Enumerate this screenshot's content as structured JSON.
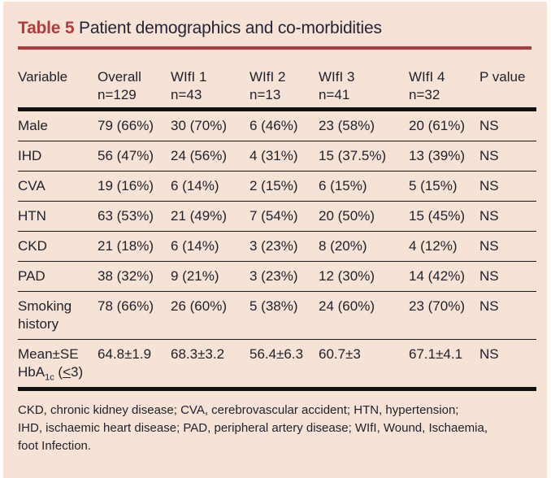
{
  "colors": {
    "panel_background": "#f6e3d6",
    "accent_red": "#b23b3e",
    "text_dark": "#20222e",
    "rule_black": "#121212"
  },
  "title": {
    "label": "Table 5",
    "text": "Patient demographics and co-morbidities"
  },
  "table": {
    "columns": [
      {
        "line1": "Variable",
        "line2": ""
      },
      {
        "line1": "Overall",
        "line2": "n=129"
      },
      {
        "line1": "WIfI 1",
        "line2": "n=43"
      },
      {
        "line1": "WIfI 2",
        "line2": "n=13"
      },
      {
        "line1": "WIfI 3",
        "line2": "n=41"
      },
      {
        "line1": "WIfI 4",
        "line2": "n=32"
      },
      {
        "line1": "P value",
        "line2": ""
      }
    ],
    "rows": [
      {
        "variable_lines": [
          [
            {
              "text": "Male"
            }
          ]
        ],
        "values": [
          "79 (66%)",
          "30 (70%)",
          "6 (46%)",
          "23 (58%)",
          "20 (61%)",
          "NS"
        ]
      },
      {
        "variable_lines": [
          [
            {
              "text": "IHD"
            }
          ]
        ],
        "values": [
          "56 (47%)",
          "24 (56%)",
          "4 (31%)",
          "15 (37.5%)",
          "13 (39%)",
          "NS"
        ]
      },
      {
        "variable_lines": [
          [
            {
              "text": "CVA"
            }
          ]
        ],
        "values": [
          "19 (16%)",
          "6 (14%)",
          "2 (15%)",
          "6 (15%)",
          "5 (15%)",
          "NS"
        ]
      },
      {
        "variable_lines": [
          [
            {
              "text": "HTN"
            }
          ]
        ],
        "values": [
          "63 (53%)",
          "21 (49%)",
          "7 (54%)",
          "20 (50%)",
          "15 (45%)",
          "NS"
        ]
      },
      {
        "variable_lines": [
          [
            {
              "text": "CKD"
            }
          ]
        ],
        "values": [
          "21 (18%)",
          "6 (14%)",
          "3 (23%)",
          "8 (20%)",
          "4 (12%)",
          "NS"
        ]
      },
      {
        "variable_lines": [
          [
            {
              "text": "PAD"
            }
          ]
        ],
        "values": [
          "38 (32%)",
          "9 (21%)",
          "3 (23%)",
          "12 (30%)",
          "14 (42%)",
          "NS"
        ]
      },
      {
        "variable_lines": [
          [
            {
              "text": "Smoking"
            }
          ],
          [
            {
              "text": "history"
            }
          ]
        ],
        "values": [
          "78 (66%)",
          "26 (60%)",
          "5 (38%)",
          "24 (60%)",
          "23 (70%)",
          "NS"
        ]
      },
      {
        "variable_lines": [
          [
            {
              "text": "Mean±SE"
            }
          ],
          [
            {
              "text": "HbA"
            },
            {
              "text": "1c",
              "style": "sub"
            },
            {
              "text": " ("
            },
            {
              "text": "<",
              "style": "underline"
            },
            {
              "text": "3)"
            }
          ]
        ],
        "values": [
          "64.8±1.9",
          "68.3±3.2",
          "56.4±6.3",
          "60.7±3",
          "67.1±4.1",
          "NS"
        ]
      }
    ]
  },
  "footnote": {
    "lines": [
      "CKD, chronic kidney disease; CVA, cerebrovascular accident; HTN, hypertension;",
      "IHD, ischaemic heart disease; PAD, peripheral artery disease; WIfI, Wound, Ischaemia,",
      "foot Infection."
    ]
  }
}
